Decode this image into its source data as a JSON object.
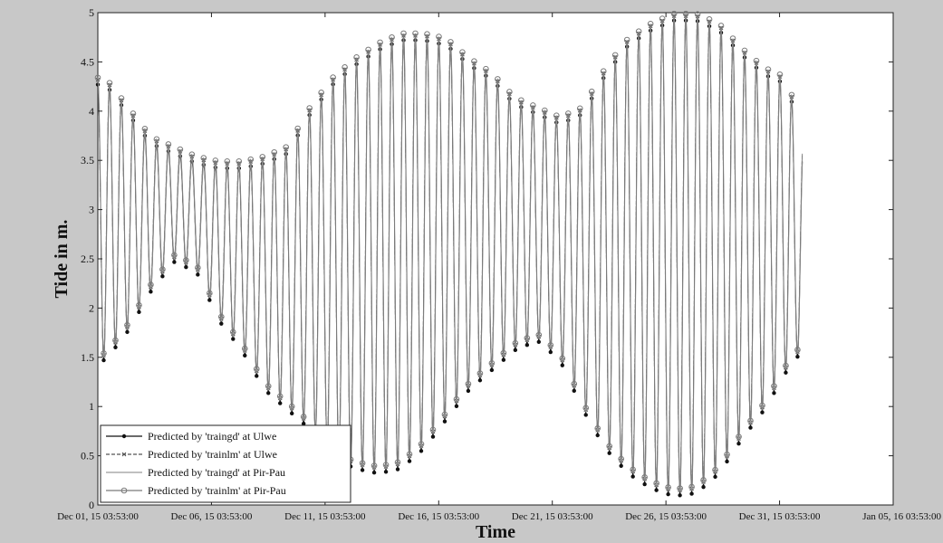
{
  "chart_data": {
    "type": "line",
    "title": "",
    "xlabel": "Time",
    "ylabel": "Tide in m.",
    "ylim": [
      0,
      5
    ],
    "xlim": [
      "2015-12-01T03:53:00",
      "2016-01-05T03:53:00"
    ],
    "data_end": "2016-01-01T03:53:00",
    "y_ticks": [
      "0",
      "0.5",
      "1",
      "1.5",
      "2",
      "2.5",
      "3",
      "3.5",
      "4",
      "4.5",
      "5"
    ],
    "x_ticks": [
      "Dec 01, 15 03:53:00",
      "Dec 06, 15 03:53:00",
      "Dec 11, 15 03:53:00",
      "Dec 16, 15 03:53:00",
      "Dec 21, 15 03:53:00",
      "Dec 26, 15 03:53:00",
      "Dec 31, 15 03:53:00",
      "Jan 05, 16 03:53:00"
    ],
    "x_tick_dates": [
      "2015-12-01T03:53:00",
      "2015-12-06T03:53:00",
      "2015-12-11T03:53:00",
      "2015-12-16T03:53:00",
      "2015-12-21T03:53:00",
      "2015-12-26T03:53:00",
      "2015-12-31T03:53:00",
      "2016-01-05T03:53:00"
    ],
    "grid": false,
    "legend_position": "bottom-left",
    "tide_period_hours": 12.42,
    "high_tide_daily_approx": {
      "dates": [
        "2015-12-01",
        "2015-12-02",
        "2015-12-03",
        "2015-12-04",
        "2015-12-05",
        "2015-12-06",
        "2015-12-07",
        "2015-12-08",
        "2015-12-09",
        "2015-12-10",
        "2015-12-11",
        "2015-12-12",
        "2015-12-13",
        "2015-12-14",
        "2015-12-15",
        "2015-12-16",
        "2015-12-17",
        "2015-12-18",
        "2015-12-19",
        "2015-12-20",
        "2015-12-21",
        "2015-12-22",
        "2015-12-23",
        "2015-12-24",
        "2015-12-25",
        "2015-12-26",
        "2015-12-27",
        "2015-12-28",
        "2015-12-29",
        "2015-12-30",
        "2015-12-31",
        "2016-01-01"
      ],
      "values": [
        4.3,
        4.0,
        3.7,
        3.6,
        3.5,
        3.45,
        3.45,
        3.5,
        3.6,
        4.0,
        4.3,
        4.5,
        4.65,
        4.75,
        4.75,
        4.7,
        4.5,
        4.35,
        4.1,
        4.0,
        3.9,
        4.0,
        4.4,
        4.7,
        4.85,
        4.95,
        4.95,
        4.85,
        4.6,
        4.4,
        4.3,
        3.4
      ]
    },
    "low_tide_daily_approx": {
      "dates": [
        "2015-12-01",
        "2015-12-02",
        "2015-12-03",
        "2015-12-04",
        "2015-12-05",
        "2015-12-06",
        "2015-12-07",
        "2015-12-08",
        "2015-12-09",
        "2015-12-10",
        "2015-12-11",
        "2015-12-12",
        "2015-12-13",
        "2015-12-14",
        "2015-12-15",
        "2015-12-16",
        "2015-12-17",
        "2015-12-18",
        "2015-12-19",
        "2015-12-20",
        "2015-12-21",
        "2015-12-22",
        "2015-12-23",
        "2015-12-24",
        "2015-12-25",
        "2015-12-26",
        "2015-12-27",
        "2015-12-28",
        "2015-12-29",
        "2015-12-30",
        "2015-12-31",
        "2016-01-01"
      ],
      "values": [
        1.5,
        1.8,
        2.2,
        2.5,
        2.4,
        1.9,
        1.6,
        1.2,
        1.0,
        0.8,
        0.5,
        0.4,
        0.35,
        0.4,
        0.6,
        0.9,
        1.2,
        1.4,
        1.6,
        1.7,
        1.5,
        1.0,
        0.6,
        0.35,
        0.2,
        0.12,
        0.15,
        0.35,
        0.7,
        1.0,
        1.4,
        1.7
      ]
    },
    "series": [
      {
        "name": "Predicted by 'traingd' at Ulwe",
        "color": "#111111",
        "line_style": "solid",
        "marker": "dot"
      },
      {
        "name": "Predicted by 'trainlm' at Ulwe",
        "color": "#555555",
        "line_style": "dashed",
        "marker": "x"
      },
      {
        "name": "Predicted by 'traingd' at Pir-Pau",
        "color": "#9a9a9a",
        "line_style": "solid",
        "marker": "none"
      },
      {
        "name": "Predicted by 'trainlm' at Pir-Pau",
        "color": "#7a7a7a",
        "line_style": "solid",
        "marker": "circle"
      }
    ]
  }
}
